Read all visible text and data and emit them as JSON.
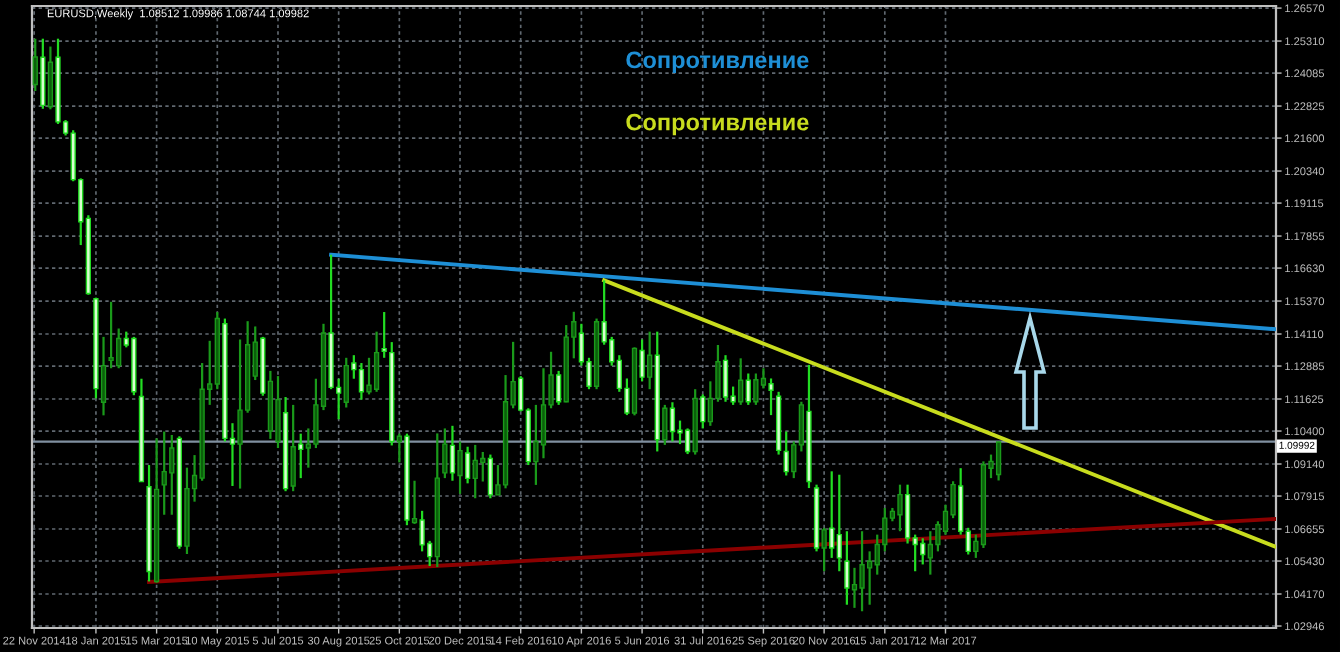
{
  "chart_data": {
    "type": "candlestick",
    "title": "EURUSD,Weekly  1.08512 1.09986 1.08744 1.09982",
    "x": [
      "2014-11-23",
      "2014-11-30",
      "2014-12-07",
      "2014-12-14",
      "2014-12-21",
      "2014-12-28",
      "2015-01-04",
      "2015-01-11",
      "2015-01-18",
      "2015-01-25",
      "2015-02-01",
      "2015-02-08",
      "2015-02-15",
      "2015-02-22",
      "2015-03-01",
      "2015-03-08",
      "2015-03-15",
      "2015-03-22",
      "2015-03-29",
      "2015-04-05",
      "2015-04-12",
      "2015-04-19",
      "2015-04-26",
      "2015-05-03",
      "2015-05-10",
      "2015-05-17",
      "2015-05-24",
      "2015-05-31",
      "2015-06-07",
      "2015-06-14",
      "2015-06-21",
      "2015-06-28",
      "2015-07-05",
      "2015-07-12",
      "2015-07-19",
      "2015-07-26",
      "2015-08-02",
      "2015-08-09",
      "2015-08-16",
      "2015-08-23",
      "2015-08-30",
      "2015-09-06",
      "2015-09-13",
      "2015-09-20",
      "2015-09-27",
      "2015-10-04",
      "2015-10-11",
      "2015-10-18",
      "2015-10-25",
      "2015-11-01",
      "2015-11-08",
      "2015-11-15",
      "2015-11-22",
      "2015-11-29",
      "2015-12-06",
      "2015-12-13",
      "2015-12-20",
      "2015-12-27",
      "2016-01-03",
      "2016-01-10",
      "2016-01-17",
      "2016-01-24",
      "2016-01-31",
      "2016-02-07",
      "2016-02-14",
      "2016-02-21",
      "2016-02-28",
      "2016-03-06",
      "2016-03-13",
      "2016-03-20",
      "2016-03-27",
      "2016-04-03",
      "2016-04-10",
      "2016-04-17",
      "2016-04-24",
      "2016-05-01",
      "2016-05-08",
      "2016-05-15",
      "2016-05-22",
      "2016-05-29",
      "2016-06-05",
      "2016-06-12",
      "2016-06-19",
      "2016-06-26",
      "2016-07-03",
      "2016-07-10",
      "2016-07-17",
      "2016-07-24",
      "2016-07-31",
      "2016-08-07",
      "2016-08-14",
      "2016-08-21",
      "2016-08-28",
      "2016-09-04",
      "2016-09-11",
      "2016-09-18",
      "2016-09-25",
      "2016-10-02",
      "2016-10-09",
      "2016-10-16",
      "2016-10-23",
      "2016-10-30",
      "2016-11-06",
      "2016-11-13",
      "2016-11-20",
      "2016-11-27",
      "2016-12-04",
      "2016-12-11",
      "2016-12-18",
      "2016-12-25",
      "2017-01-01",
      "2017-01-08",
      "2017-01-15",
      "2017-01-22",
      "2017-01-29",
      "2017-02-05",
      "2017-02-12",
      "2017-02-19",
      "2017-02-26",
      "2017-03-05",
      "2017-03-12",
      "2017-03-19",
      "2017-03-26",
      "2017-04-02",
      "2017-04-09",
      "2017-04-16",
      "2017-04-23",
      "2017-04-30"
    ],
    "ohlc": [
      [
        1.2365,
        1.254,
        1.234,
        1.247
      ],
      [
        1.2469,
        1.254,
        1.2272,
        1.2285
      ],
      [
        1.228,
        1.251,
        1.227,
        1.245
      ],
      [
        1.2469,
        1.254,
        1.2214,
        1.2222
      ],
      [
        1.2222,
        1.2229,
        1.217,
        1.2179
      ],
      [
        1.2179,
        1.219,
        1.1995,
        1.2001
      ],
      [
        1.2001,
        1.2006,
        1.1751,
        1.184
      ],
      [
        1.1853,
        1.1865,
        1.1561,
        1.1566
      ],
      [
        1.1546,
        1.155,
        1.1165,
        1.1202
      ],
      [
        1.115,
        1.14,
        1.11,
        1.129
      ],
      [
        1.131,
        1.1534,
        1.128,
        1.132
      ],
      [
        1.129,
        1.1432,
        1.128,
        1.1394
      ],
      [
        1.1394,
        1.142,
        1.136,
        1.1369
      ],
      [
        1.1394,
        1.14,
        1.1177,
        1.119
      ],
      [
        1.1172,
        1.124,
        1.0847,
        1.0847
      ],
      [
        1.0827,
        1.091,
        1.0465,
        1.0503
      ],
      [
        1.0465,
        1.1012,
        1.046,
        1.0817
      ],
      [
        1.0834,
        1.1038,
        1.072,
        1.0885
      ],
      [
        1.088,
        1.1025,
        1.072,
        1.0975
      ],
      [
        1.1012,
        1.102,
        1.059,
        1.06
      ],
      [
        1.06,
        1.09,
        1.057,
        1.082
      ],
      [
        1.082,
        1.0948,
        1.077,
        1.087
      ],
      [
        1.086,
        1.13,
        1.085,
        1.12
      ],
      [
        1.12,
        1.1385,
        1.114,
        1.122
      ],
      [
        1.122,
        1.1495,
        1.12,
        1.147
      ],
      [
        1.145,
        1.147,
        1.1,
        1.1012
      ],
      [
        1.1012,
        1.107,
        1.083,
        1.099
      ],
      [
        1.099,
        1.139,
        1.082,
        1.112
      ],
      [
        1.112,
        1.146,
        1.111,
        1.137
      ],
      [
        1.125,
        1.144,
        1.1235,
        1.138
      ],
      [
        1.1395,
        1.14,
        1.1175,
        1.1185
      ],
      [
        1.104,
        1.127,
        1.101,
        1.123
      ],
      [
        1.1,
        1.125,
        1.0975,
        1.116
      ],
      [
        1.111,
        1.117,
        1.081,
        1.082
      ],
      [
        1.083,
        1.114,
        1.081,
        1.098
      ],
      [
        1.099,
        1.103,
        1.086,
        1.097
      ],
      [
        1.0975,
        1.105,
        1.09,
        1.099
      ],
      [
        1.099,
        1.124,
        1.0975,
        1.114
      ],
      [
        1.1135,
        1.145,
        1.112,
        1.1415
      ],
      [
        1.1415,
        1.1714,
        1.12,
        1.1207
      ],
      [
        1.1207,
        1.124,
        1.1085,
        1.1185
      ],
      [
        1.115,
        1.132,
        1.113,
        1.129
      ],
      [
        1.13,
        1.133,
        1.124,
        1.1275
      ],
      [
        1.1275,
        1.13,
        1.116,
        1.119
      ],
      [
        1.119,
        1.132,
        1.118,
        1.1215
      ],
      [
        1.12,
        1.142,
        1.119,
        1.134
      ],
      [
        1.1355,
        1.1495,
        1.132,
        1.1345
      ],
      [
        1.134,
        1.138,
        1.0985,
        1.1
      ],
      [
        1.1,
        1.103,
        1.092,
        1.102
      ],
      [
        1.102,
        1.103,
        1.068,
        1.07
      ],
      [
        1.069,
        1.085,
        1.0685,
        1.0705
      ],
      [
        1.07,
        1.0735,
        1.058,
        1.0605
      ],
      [
        1.061,
        1.062,
        1.0524,
        1.056
      ],
      [
        1.056,
        1.1031,
        1.052,
        1.086
      ],
      [
        1.088,
        1.105,
        1.086,
        1.099
      ],
      [
        1.0985,
        1.106,
        1.085,
        1.088
      ],
      [
        1.087,
        1.1,
        1.08,
        1.0965
      ],
      [
        1.0956,
        1.098,
        1.084,
        1.0859
      ],
      [
        1.0859,
        1.0987,
        1.0783,
        1.0928
      ],
      [
        1.092,
        1.096,
        1.0847,
        1.0935
      ],
      [
        1.0935,
        1.095,
        1.0783,
        1.0796
      ],
      [
        1.0796,
        1.091,
        1.0796,
        1.0834
      ],
      [
        1.0834,
        1.1254,
        1.0821,
        1.1152
      ],
      [
        1.114,
        1.1381,
        1.1127,
        1.1229
      ],
      [
        1.1242,
        1.125,
        1.1115,
        1.112
      ],
      [
        1.112,
        1.1127,
        1.091,
        1.0923
      ],
      [
        1.0923,
        1.114,
        1.0834,
        1.1
      ],
      [
        1.0987,
        1.128,
        1.0936,
        1.114
      ],
      [
        1.114,
        1.1343,
        1.1127,
        1.1254
      ],
      [
        1.1254,
        1.127,
        1.114,
        1.1152
      ],
      [
        1.1152,
        1.1445,
        1.115,
        1.1399
      ],
      [
        1.1399,
        1.1496,
        1.1318,
        1.1458
      ],
      [
        1.1414,
        1.145,
        1.129,
        1.1305
      ],
      [
        1.1305,
        1.132,
        1.12,
        1.1211
      ],
      [
        1.1211,
        1.147,
        1.12,
        1.1458
      ],
      [
        1.1458,
        1.1616,
        1.137,
        1.1381
      ],
      [
        1.1389,
        1.14,
        1.129,
        1.1305
      ],
      [
        1.131,
        1.133,
        1.119,
        1.1203
      ],
      [
        1.1203,
        1.1241,
        1.1101,
        1.1109
      ],
      [
        1.1109,
        1.136,
        1.11,
        1.1356
      ],
      [
        1.1348,
        1.139,
        1.123,
        1.1246
      ],
      [
        1.1246,
        1.142,
        1.12,
        1.133
      ],
      [
        1.133,
        1.142,
        1.0962,
        1.1007
      ],
      [
        1.1007,
        1.114,
        1.0987,
        1.1127
      ],
      [
        1.1127,
        1.115,
        1.1,
        1.1038
      ],
      [
        1.1043,
        1.108,
        1.099,
        1.1033
      ],
      [
        1.1043,
        1.105,
        1.0952,
        1.0962
      ],
      [
        1.0962,
        1.12,
        1.095,
        1.1165
      ],
      [
        1.117,
        1.118,
        1.105,
        1.1076
      ],
      [
        1.1076,
        1.123,
        1.106,
        1.1165
      ],
      [
        1.1165,
        1.1369,
        1.1152,
        1.1305
      ],
      [
        1.131,
        1.133,
        1.1152,
        1.117
      ],
      [
        1.1173,
        1.121,
        1.114,
        1.1152
      ],
      [
        1.1152,
        1.1318,
        1.114,
        1.1234
      ],
      [
        1.1234,
        1.126,
        1.114,
        1.1152
      ],
      [
        1.1152,
        1.126,
        1.114,
        1.1236
      ],
      [
        1.1216,
        1.128,
        1.1203,
        1.1241
      ],
      [
        1.1221,
        1.1241,
        1.1101,
        1.1196
      ],
      [
        1.1173,
        1.119,
        1.095,
        1.0966
      ],
      [
        1.0962,
        1.1038,
        1.087,
        1.0885
      ],
      [
        1.0885,
        1.1,
        1.086,
        1.0987
      ],
      [
        1.0987,
        1.1152,
        1.0962,
        1.114
      ],
      [
        1.1115,
        1.1293,
        1.0822,
        1.0847
      ],
      [
        1.0822,
        1.0835,
        1.058,
        1.0593
      ],
      [
        1.0593,
        1.067,
        1.0504,
        1.0662
      ],
      [
        1.0669,
        1.0886,
        1.0555,
        1.0593
      ],
      [
        1.0644,
        1.0873,
        1.0504,
        1.0555
      ],
      [
        1.0542,
        1.0657,
        1.0376,
        1.044
      ],
      [
        1.0433,
        1.0517,
        1.0364,
        1.0453
      ],
      [
        1.044,
        1.0657,
        1.0351,
        1.0529
      ],
      [
        1.0517,
        1.058,
        1.0376,
        1.0542
      ],
      [
        1.0529,
        1.0644,
        1.0491,
        1.0606
      ],
      [
        1.0606,
        1.0746,
        1.058,
        1.0707
      ],
      [
        1.0707,
        1.0746,
        1.0695,
        1.0733
      ],
      [
        1.072,
        1.0835,
        1.0657,
        1.0797
      ],
      [
        1.0797,
        1.0835,
        1.061,
        1.0631
      ],
      [
        1.0631,
        1.0644,
        1.0504,
        1.0606
      ],
      [
        1.061,
        1.063,
        1.053,
        1.0568
      ],
      [
        1.0555,
        1.0657,
        1.0491,
        1.0606
      ],
      [
        1.0606,
        1.0695,
        1.058,
        1.0682
      ],
      [
        1.0657,
        1.0758,
        1.0644,
        1.0733
      ],
      [
        1.072,
        1.0848,
        1.0707,
        1.0835
      ],
      [
        1.083,
        1.0898,
        1.0644,
        1.0657
      ],
      [
        1.0657,
        1.067,
        1.0568,
        1.058
      ],
      [
        1.058,
        1.0644,
        1.0555,
        1.0618
      ],
      [
        1.0606,
        1.0924,
        1.0593,
        1.0911
      ],
      [
        1.0898,
        1.095,
        1.086,
        1.0924
      ],
      [
        1.0874,
        1.0999,
        1.0851,
        1.0998
      ]
    ],
    "series": [
      {
        "type": "line",
        "name": "Сопротивление",
        "color": "#1e8fd6",
        "x": [
          "2015-08-23",
          "2018-01-11"
        ],
        "values": [
          1.1714,
          1.1429
        ]
      },
      {
        "type": "line",
        "name": "Сопротивление",
        "color": "#c8dc1e",
        "x": [
          "2016-05-01",
          "2018-01-11"
        ],
        "values": [
          1.1616,
          1.0597
        ]
      },
      {
        "type": "line",
        "color": "#8b0000",
        "x": [
          "2015-03-08",
          "2018-01-11"
        ],
        "values": [
          1.0463,
          1.0704
        ]
      }
    ],
    "ref_lines": [
      {
        "axis": "y",
        "value": 1.09992,
        "label": "1.09992",
        "color": "#8090a0"
      }
    ],
    "xlim": [
      "2014-11-20",
      "2018-01-11"
    ],
    "xticks": [
      {
        "value": "2014-11-22",
        "label": "22 Nov 2014"
      },
      {
        "value": "2015-01-18",
        "label": "18 Jan 2015"
      },
      {
        "value": "2015-03-15",
        "label": "15 Mar 2015"
      },
      {
        "value": "2015-05-10",
        "label": "10 May 2015"
      },
      {
        "value": "2015-07-05",
        "label": "5 Jul 2015"
      },
      {
        "value": "2015-08-30",
        "label": "30 Aug 2015"
      },
      {
        "value": "2015-10-25",
        "label": "25 Oct 2015"
      },
      {
        "value": "2015-12-20",
        "label": "20 Dec 2015"
      },
      {
        "value": "2016-02-14",
        "label": "14 Feb 2016"
      },
      {
        "value": "2016-04-10",
        "label": "10 Apr 2016"
      },
      {
        "value": "2016-06-05",
        "label": "5 Jun 2016"
      },
      {
        "value": "2016-07-31",
        "label": "31 Jul 2016"
      },
      {
        "value": "2016-09-25",
        "label": "25 Sep 2016"
      },
      {
        "value": "2016-11-20",
        "label": "20 Nov 2016"
      },
      {
        "value": "2017-01-15",
        "label": "15 Jan 2017"
      },
      {
        "value": "2017-03-12",
        "label": "12 Mar 2017"
      }
    ],
    "ylim": [
      1.0287,
      1.2665
    ],
    "yticks": [
      {
        "value": 1.2657,
        "label": "1.26570"
      },
      {
        "value": 1.2531,
        "label": "1.25310"
      },
      {
        "value": 1.24085,
        "label": "1.24085"
      },
      {
        "value": 1.22825,
        "label": "1.22825"
      },
      {
        "value": 1.216,
        "label": "1.21600"
      },
      {
        "value": 1.2034,
        "label": "1.20340"
      },
      {
        "value": 1.19115,
        "label": "1.19115"
      },
      {
        "value": 1.17855,
        "label": "1.17855"
      },
      {
        "value": 1.1663,
        "label": "1.16630"
      },
      {
        "value": 1.1537,
        "label": "1.15370"
      },
      {
        "value": 1.1411,
        "label": "1.14110"
      },
      {
        "value": 1.12885,
        "label": "1.12885"
      },
      {
        "value": 1.11625,
        "label": "1.11625"
      },
      {
        "value": 1.104,
        "label": "1.10400"
      },
      {
        "value": 1.0914,
        "label": "1.09140"
      },
      {
        "value": 1.07915,
        "label": "1.07915"
      },
      {
        "value": 1.06655,
        "label": "1.06655"
      },
      {
        "value": 1.0543,
        "label": "1.05430"
      },
      {
        "value": 1.0417,
        "label": "1.04170"
      },
      {
        "value": 1.02946,
        "label": "1.02946"
      }
    ],
    "grid": true
  }
}
